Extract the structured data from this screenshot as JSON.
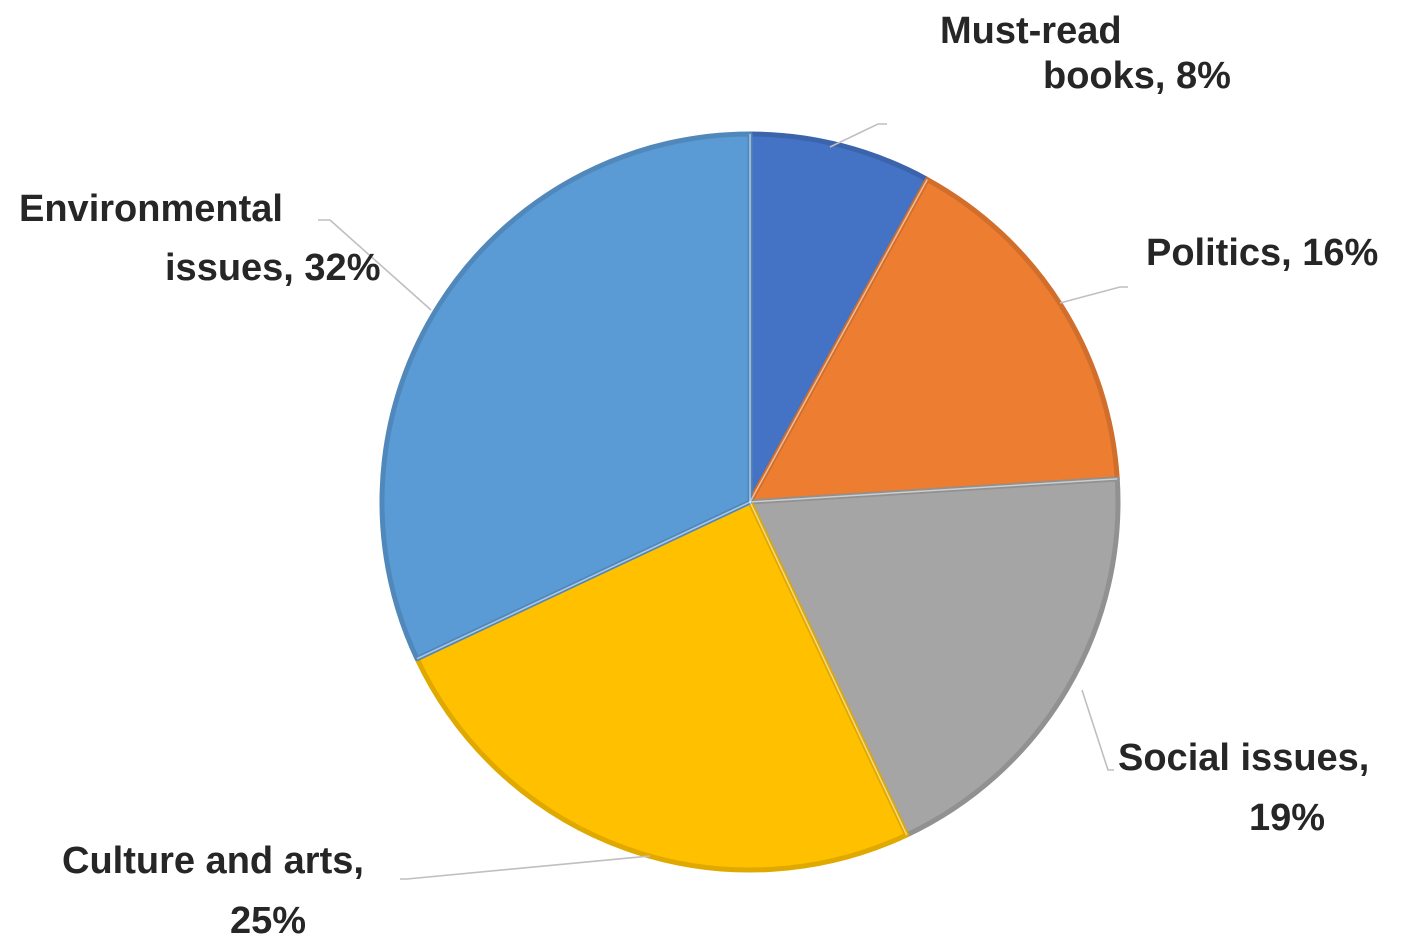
{
  "chart_data": {
    "type": "pie",
    "title": "",
    "slices": [
      {
        "label": "Must-read books",
        "value": 8,
        "value_label": "8%",
        "color": "#4472C4",
        "label_lines": [
          "Must-read",
          "books, 8%"
        ]
      },
      {
        "label": "Politics",
        "value": 16,
        "value_label": "16%",
        "color": "#ED7D31",
        "label_lines": [
          "Politics, 16%"
        ]
      },
      {
        "label": "Social issues",
        "value": 19,
        "value_label": "19%",
        "color": "#A5A5A5",
        "label_lines": [
          "Social issues,",
          "19%"
        ]
      },
      {
        "label": "Culture and arts",
        "value": 25,
        "value_label": "25%",
        "color": "#FFC000",
        "label_lines": [
          "Culture and arts,",
          "25%"
        ]
      },
      {
        "label": "Environmental issues",
        "value": 32,
        "value_label": "32%",
        "color": "#5B9BD5",
        "label_lines": [
          "Environmental",
          "issues, 32%"
        ]
      }
    ],
    "start_angle": "12 o'clock",
    "direction": "clockwise",
    "legend": "none",
    "data_labels": "category name and percentage, outside end with leader lines"
  }
}
